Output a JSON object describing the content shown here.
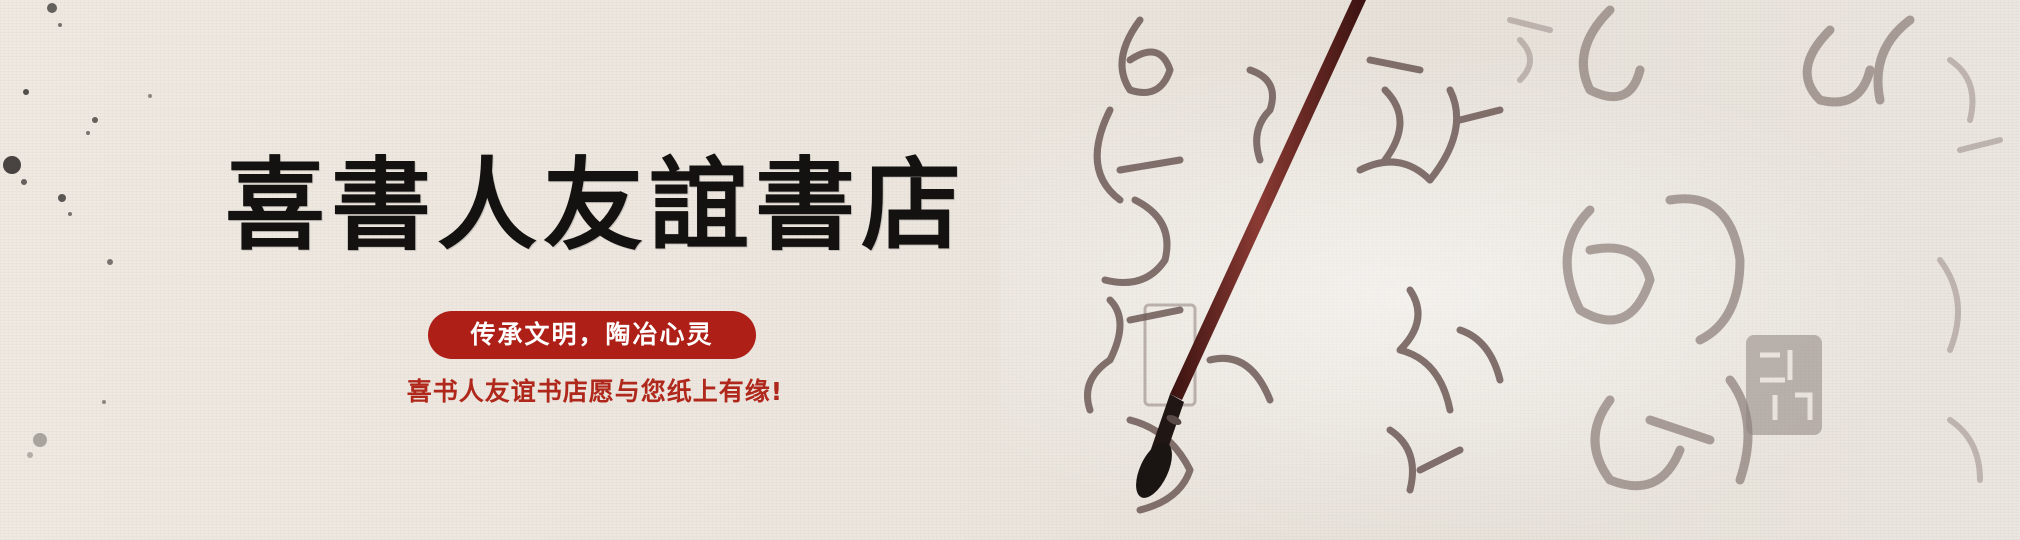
{
  "banner": {
    "title": "喜書人友誼書店",
    "slogan": "传承文明，陶冶心灵",
    "tagline": "喜书人友谊书店愿与您纸上有缘!"
  },
  "colors": {
    "paper": "#ece6de",
    "title_ink": "#141210",
    "slogan_bg": "#ad1f17",
    "tagline_red": "#b0271b",
    "calligraphy_ink": "#6e5a56",
    "brush_wood": "#5a1e1a"
  }
}
